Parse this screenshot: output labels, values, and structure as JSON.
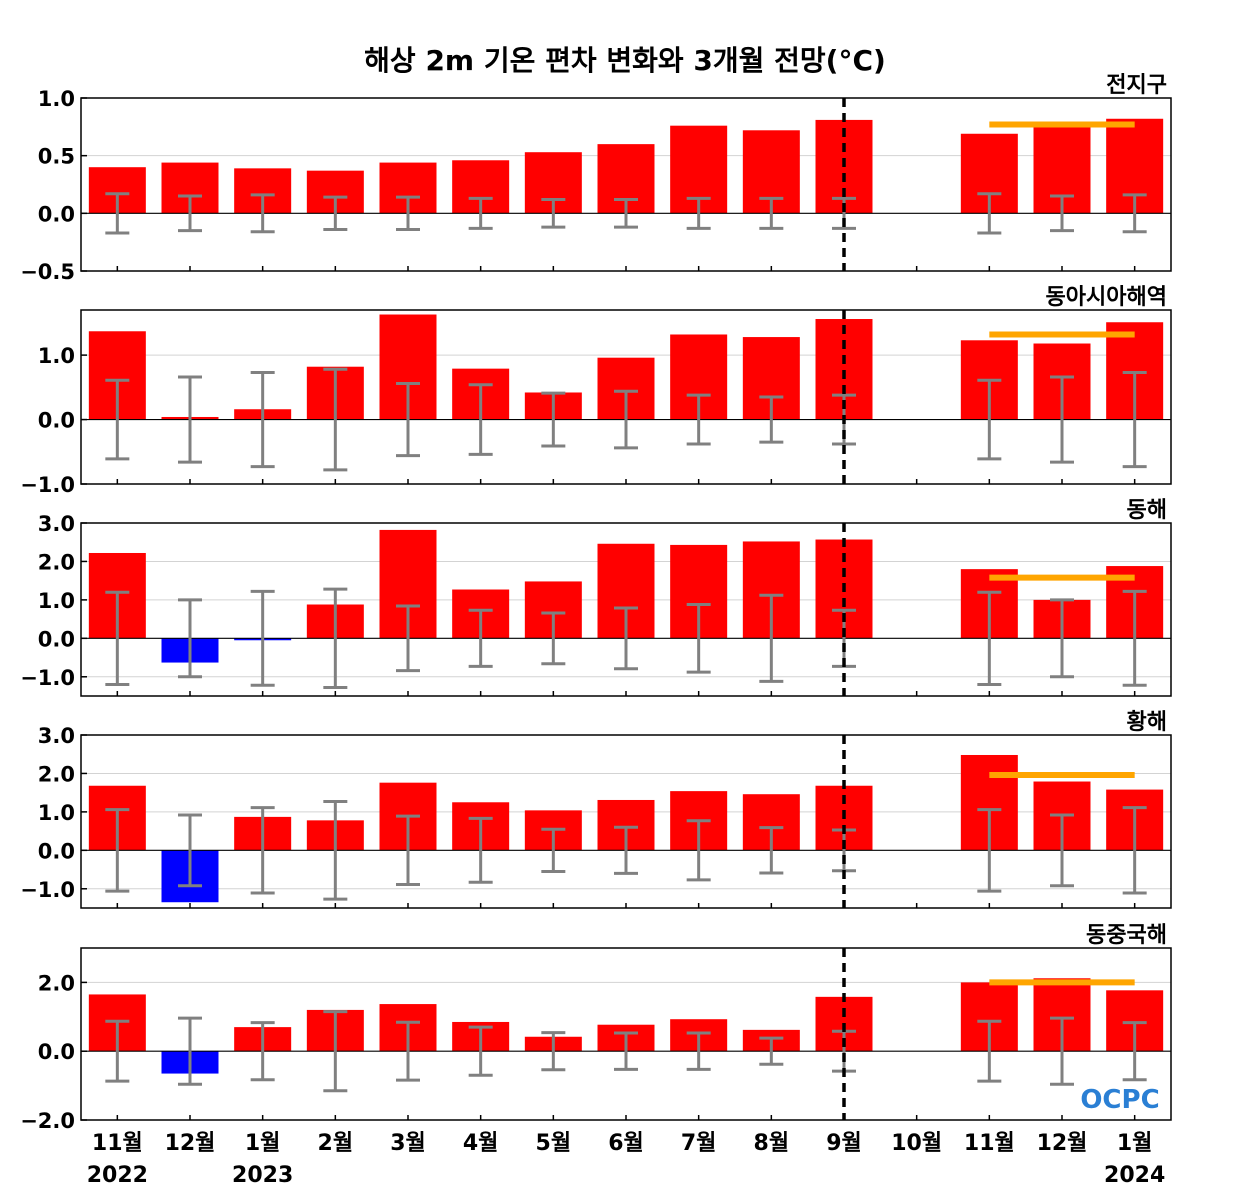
{
  "title": "해상 2m 기온 편차 변화와 3개월 전망(°C)",
  "logo": {
    "text": "OCPC",
    "color": "#2a7fd4"
  },
  "colors": {
    "positive": "#ff0000",
    "negative": "#0000ff",
    "errorbar": "#808080",
    "forecast_line": "#ffa500",
    "zero_line": "#000000",
    "grid": "#d3d3d3"
  },
  "x_labels": [
    "11월",
    "12월",
    "1월",
    "2월",
    "3월",
    "4월",
    "5월",
    "6월",
    "7월",
    "8월",
    "9월",
    "10월",
    "11월",
    "12월",
    "1월"
  ],
  "year_labels": {
    "first": "2022",
    "second": "2023",
    "last": "2024"
  },
  "chart_data": [
    {
      "type": "bar",
      "label": "전지구",
      "ylim": [
        -0.5,
        1.0
      ],
      "yticks": [
        -0.5,
        0.0,
        0.5,
        1.0
      ],
      "ytick_labels": [
        "−0.5",
        "0.0",
        "0.5",
        "1.0"
      ],
      "values": [
        0.4,
        0.44,
        0.39,
        0.37,
        0.44,
        0.46,
        0.53,
        0.6,
        0.76,
        0.72,
        0.81,
        0.0,
        0.69,
        0.78,
        0.82
      ],
      "errors": [
        0.17,
        0.15,
        0.16,
        0.14,
        0.14,
        0.13,
        0.12,
        0.12,
        0.13,
        0.13,
        0.13,
        null,
        0.17,
        0.15,
        0.16
      ],
      "forecast_mean": 0.77
    },
    {
      "type": "bar",
      "label": "동아시아해역",
      "ylim": [
        -1.0,
        1.7
      ],
      "yticks": [
        -1.0,
        0.0,
        1.0
      ],
      "ytick_labels": [
        "−1.0",
        "0.0",
        "1.0"
      ],
      "values": [
        1.37,
        0.04,
        0.16,
        0.82,
        1.63,
        0.79,
        0.42,
        0.96,
        1.32,
        1.28,
        1.56,
        0.0,
        1.23,
        1.18,
        1.51
      ],
      "errors": [
        0.61,
        0.66,
        0.73,
        0.78,
        0.56,
        0.54,
        0.41,
        0.44,
        0.38,
        0.35,
        0.38,
        null,
        0.61,
        0.66,
        0.73
      ],
      "forecast_mean": 1.32
    },
    {
      "type": "bar",
      "label": "동해",
      "ylim": [
        -1.5,
        3.0
      ],
      "yticks": [
        -1.0,
        0.0,
        1.0,
        2.0,
        3.0
      ],
      "ytick_labels": [
        "−1.0",
        "0.0",
        "1.0",
        "2.0",
        "3.0"
      ],
      "values": [
        2.22,
        -0.63,
        -0.05,
        0.88,
        2.82,
        1.27,
        1.48,
        2.46,
        2.43,
        2.52,
        2.57,
        0.0,
        1.8,
        1.0,
        1.88
      ],
      "errors": [
        1.2,
        1.0,
        1.22,
        1.28,
        0.84,
        0.73,
        0.66,
        0.79,
        0.88,
        1.12,
        0.73,
        null,
        1.2,
        1.0,
        1.22
      ],
      "forecast_mean": 1.58
    },
    {
      "type": "bar",
      "label": "황해",
      "ylim": [
        -1.5,
        3.0
      ],
      "yticks": [
        -1.0,
        0.0,
        1.0,
        2.0,
        3.0
      ],
      "ytick_labels": [
        "−1.0",
        "0.0",
        "1.0",
        "2.0",
        "3.0"
      ],
      "values": [
        1.68,
        -1.35,
        0.87,
        0.78,
        1.76,
        1.25,
        1.04,
        1.31,
        1.54,
        1.46,
        1.68,
        0.0,
        2.48,
        1.79,
        1.58
      ],
      "errors": [
        1.06,
        0.92,
        1.11,
        1.27,
        0.89,
        0.83,
        0.55,
        0.6,
        0.77,
        0.59,
        0.53,
        null,
        1.06,
        0.92,
        1.11
      ],
      "forecast_mean": 1.96
    },
    {
      "type": "bar",
      "label": "동중국해",
      "ylim": [
        -2.0,
        3.0
      ],
      "yticks": [
        -2.0,
        0.0,
        2.0
      ],
      "ytick_labels": [
        "−2.0",
        "0.0",
        "2.0"
      ],
      "values": [
        1.65,
        -0.65,
        0.7,
        1.2,
        1.37,
        0.85,
        0.42,
        0.77,
        0.93,
        0.62,
        1.58,
        0.0,
        2.0,
        2.12,
        1.77
      ],
      "errors": [
        0.87,
        0.96,
        0.83,
        1.15,
        0.84,
        0.7,
        0.54,
        0.53,
        0.53,
        0.38,
        0.58,
        null,
        0.87,
        0.96,
        0.83
      ],
      "forecast_mean": 2.0
    }
  ]
}
